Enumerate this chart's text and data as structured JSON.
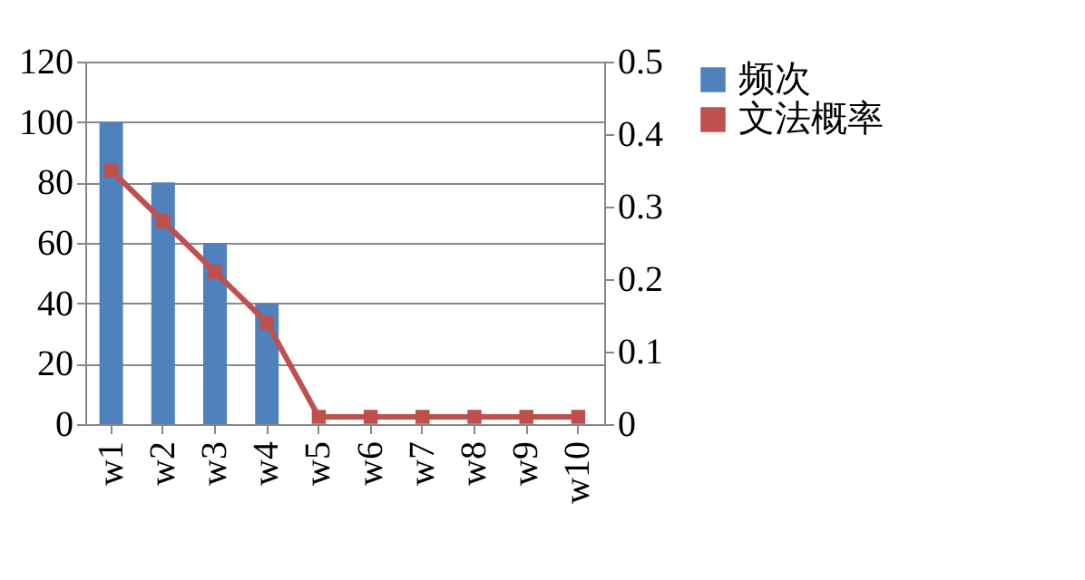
{
  "chart_data": {
    "type": "bar",
    "categories": [
      "w1",
      "w2",
      "w3",
      "w4",
      "w5",
      "w6",
      "w7",
      "w8",
      "w9",
      "w10"
    ],
    "series": [
      {
        "name": "频次",
        "color": "#4f81bd",
        "values": [
          100,
          80,
          60,
          40,
          0,
          0,
          0,
          0,
          0,
          0
        ]
      },
      {
        "name": "文法概率",
        "type": "line",
        "axis": "y2",
        "color": "#c0504d",
        "marker": "square",
        "values": [
          0.35,
          0.28,
          0.21,
          0.14,
          0.01,
          0.01,
          0.01,
          0.01,
          0.01,
          0.01
        ]
      }
    ],
    "ylim": [
      0,
      120
    ],
    "yticks": [
      0,
      20,
      40,
      60,
      80,
      100,
      120
    ],
    "y2lim": [
      0,
      0.5
    ],
    "y2ticks": [
      0,
      0.1,
      0.2,
      0.3,
      0.4,
      0.5
    ],
    "grid": "y",
    "legend": "right"
  }
}
